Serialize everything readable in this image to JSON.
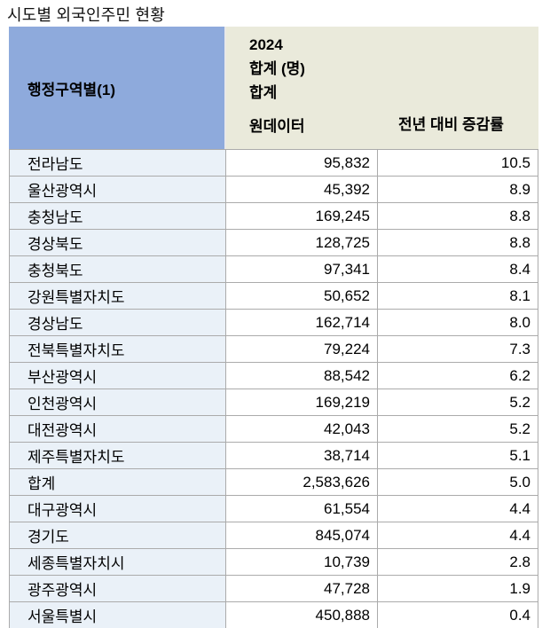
{
  "title": "시도별 외국인주민 현황",
  "header": {
    "region_col": "행정구역별(1)",
    "year": "2024",
    "unit_total": "합계 (명)",
    "total": "합계",
    "raw_data": "원데이터",
    "yoy_rate": "전년 대비 증감률"
  },
  "colors": {
    "header_region_bg": "#8EAADC",
    "header_values_bg": "#EAEADB",
    "body_region_bg": "#EAF1F8",
    "border": "#ABABAB",
    "text": "#000000"
  },
  "rows": [
    {
      "region": "전라남도",
      "value": "95,832",
      "rate": "10.5"
    },
    {
      "region": "울산광역시",
      "value": "45,392",
      "rate": "8.9"
    },
    {
      "region": "충청남도",
      "value": "169,245",
      "rate": "8.8"
    },
    {
      "region": "경상북도",
      "value": "128,725",
      "rate": "8.8"
    },
    {
      "region": "충청북도",
      "value": "97,341",
      "rate": "8.4"
    },
    {
      "region": "강원특별자치도",
      "value": "50,652",
      "rate": "8.1"
    },
    {
      "region": "경상남도",
      "value": "162,714",
      "rate": "8.0"
    },
    {
      "region": "전북특별자치도",
      "value": "79,224",
      "rate": "7.3"
    },
    {
      "region": "부산광역시",
      "value": "88,542",
      "rate": "6.2"
    },
    {
      "region": "인천광역시",
      "value": "169,219",
      "rate": "5.2"
    },
    {
      "region": "대전광역시",
      "value": "42,043",
      "rate": "5.2"
    },
    {
      "region": "제주특별자치도",
      "value": "38,714",
      "rate": "5.1"
    },
    {
      "region": "합계",
      "value": "2,583,626",
      "rate": "5.0"
    },
    {
      "region": "대구광역시",
      "value": "61,554",
      "rate": "4.4"
    },
    {
      "region": "경기도",
      "value": "845,074",
      "rate": "4.4"
    },
    {
      "region": "세종특별자치시",
      "value": "10,739",
      "rate": "2.8"
    },
    {
      "region": "광주광역시",
      "value": "47,728",
      "rate": "1.9"
    },
    {
      "region": "서울특별시",
      "value": "450,888",
      "rate": "0.4"
    }
  ],
  "chart_data": {
    "type": "table",
    "title": "시도별 외국인주민 현황",
    "columns": [
      "행정구역별(1)",
      "2024 합계 (명) 합계 원데이터",
      "전년 대비 증감률"
    ],
    "rows": [
      [
        "전라남도",
        95832,
        10.5
      ],
      [
        "울산광역시",
        45392,
        8.9
      ],
      [
        "충청남도",
        169245,
        8.8
      ],
      [
        "경상북도",
        128725,
        8.8
      ],
      [
        "충청북도",
        97341,
        8.4
      ],
      [
        "강원특별자치도",
        50652,
        8.1
      ],
      [
        "경상남도",
        162714,
        8.0
      ],
      [
        "전북특별자치도",
        79224,
        7.3
      ],
      [
        "부산광역시",
        88542,
        6.2
      ],
      [
        "인천광역시",
        169219,
        5.2
      ],
      [
        "대전광역시",
        42043,
        5.2
      ],
      [
        "제주특별자치도",
        38714,
        5.1
      ],
      [
        "합계",
        2583626,
        5.0
      ],
      [
        "대구광역시",
        61554,
        4.4
      ],
      [
        "경기도",
        845074,
        4.4
      ],
      [
        "세종특별자치시",
        10739,
        2.8
      ],
      [
        "광주광역시",
        47728,
        1.9
      ],
      [
        "서울특별시",
        450888,
        0.4
      ]
    ]
  }
}
